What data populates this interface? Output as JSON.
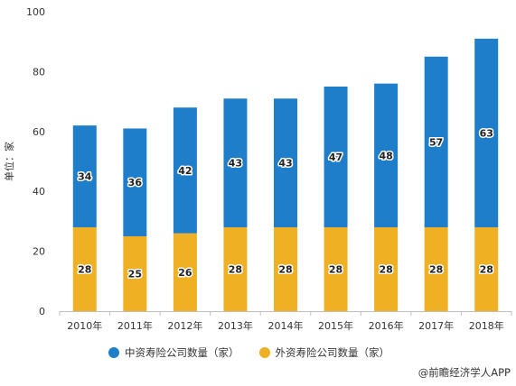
{
  "chart_data": {
    "type": "bar",
    "stacked": true,
    "title": "",
    "ylabel": "单位：家",
    "xlabel": "",
    "ylim": [
      0,
      100
    ],
    "yticks": [
      0,
      20,
      40,
      60,
      80,
      100
    ],
    "grid": false,
    "legend_position": "bottom",
    "categories": [
      "2010年",
      "2011年",
      "2012年",
      "2013年",
      "2014年",
      "2015年",
      "2016年",
      "2017年",
      "2018年"
    ],
    "series": [
      {
        "name": "外资寿险公司数量（家）",
        "color": "#f0b024",
        "values": [
          28,
          25,
          26,
          28,
          28,
          28,
          28,
          28,
          28
        ]
      },
      {
        "name": "中资寿险公司数量（家）",
        "color": "#1f7ec9",
        "values": [
          34,
          36,
          42,
          43,
          43,
          47,
          48,
          57,
          63
        ]
      }
    ]
  },
  "source": "@前瞻经济学人APP"
}
